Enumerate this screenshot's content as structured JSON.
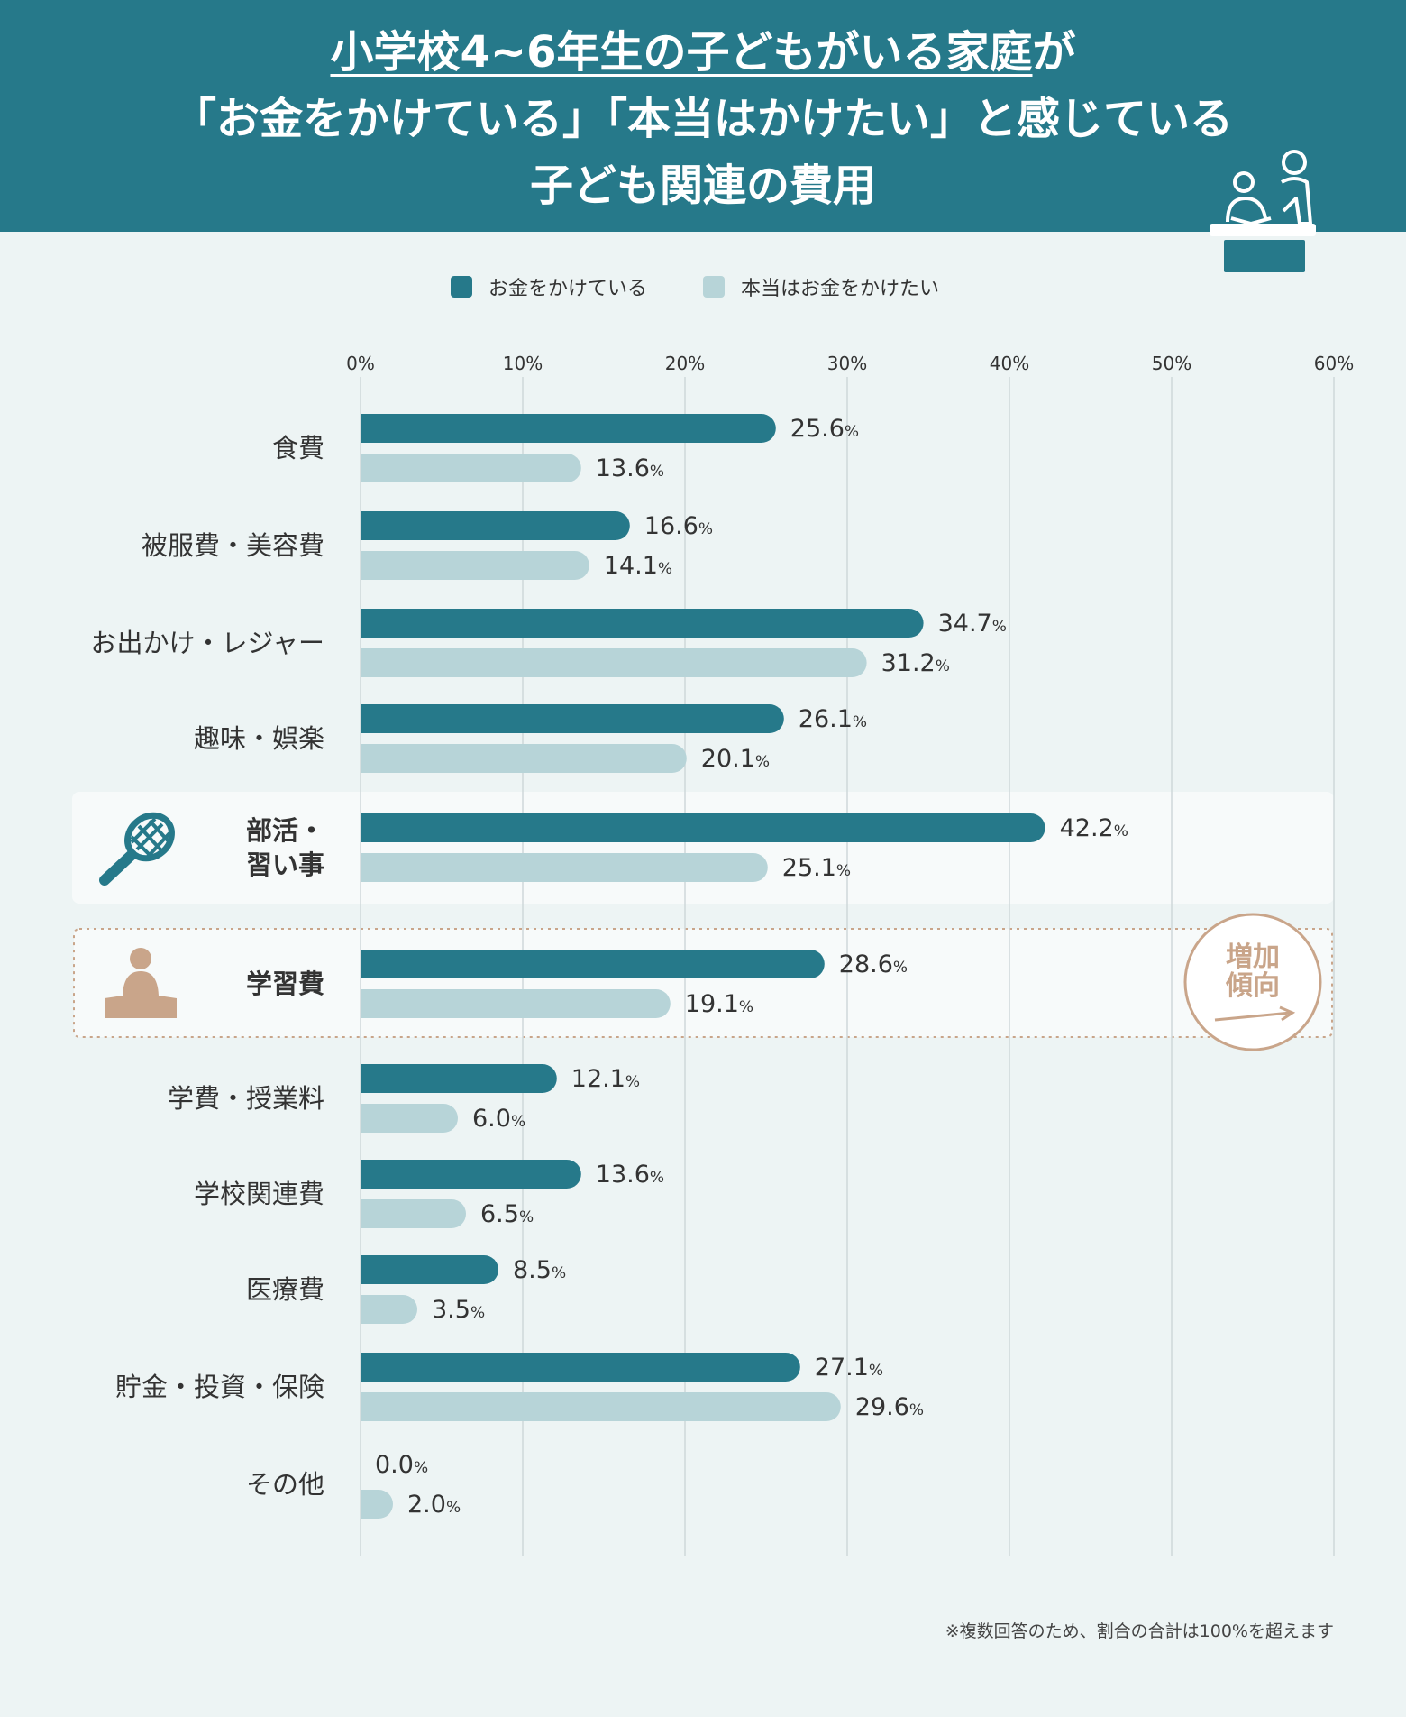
{
  "header": {
    "title_line1_underlined": "小学校4~6年生の子どもがいる家庭",
    "title_line1_rest": "が",
    "title_line2": "「お金をかけている」「本当はかけたい」と感じている",
    "title_line3": "子ども関連の費用",
    "icon": "teacher-student-icon"
  },
  "colors": {
    "header_bg": "#26798a",
    "spent": "#26798a",
    "want": "#b7d4d8",
    "accent": "#c9a58a",
    "background": "#edf4f4"
  },
  "footnote": "※複数回答のため、割合の合計は100%を超えます",
  "chart_data": {
    "type": "bar",
    "orientation": "horizontal",
    "xlim": [
      0,
      60
    ],
    "x_ticks": [
      "0%",
      "10%",
      "20%",
      "30%",
      "40%",
      "50%",
      "60%"
    ],
    "grid": true,
    "legend_position": "top-center",
    "value_unit": "%",
    "categories": [
      "食費",
      "被服費・美容費",
      "お出かけ・レジャー",
      "趣味・娯楽",
      "部活・\n習い事",
      "学習費",
      "学費・授業料",
      "学校関連費",
      "医療費",
      "貯金・投資・保険",
      "その他"
    ],
    "series": [
      {
        "name": "お金をかけている",
        "color": "#26798a",
        "values": [
          25.6,
          16.6,
          34.7,
          26.1,
          42.2,
          28.6,
          12.1,
          13.6,
          8.5,
          27.1,
          0.0
        ]
      },
      {
        "name": "本当はお金をかけたい",
        "color": "#b7d4d8",
        "values": [
          13.6,
          14.1,
          31.2,
          20.1,
          25.1,
          19.1,
          6.0,
          6.5,
          3.5,
          29.6,
          2.0
        ]
      }
    ],
    "highlights": [
      {
        "category": "部活・\n習い事",
        "style": "panel",
        "icon": "tennis-racket-icon"
      },
      {
        "category": "学習費",
        "style": "dotted-panel",
        "icon": "reading-person-icon",
        "badge_line1": "増加",
        "badge_line2": "傾向"
      }
    ]
  }
}
